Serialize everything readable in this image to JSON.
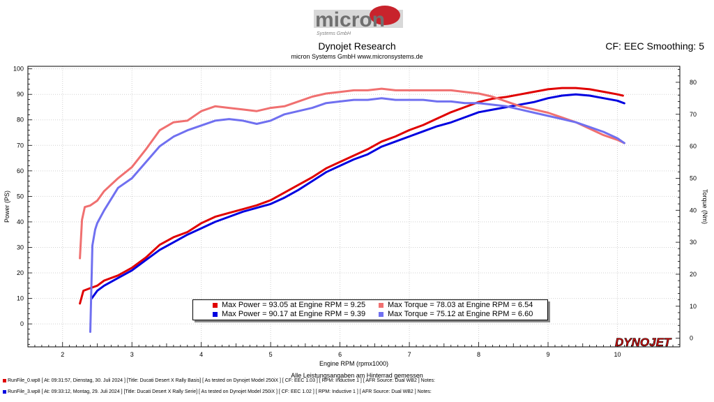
{
  "header": {
    "logo_text": "micron",
    "logo_sub": "Systems GmbH",
    "title": "Dynojet Research",
    "subtitle": "micron Systems GmbH  www.micronsystems.de",
    "right_label": "CF: EEC Smoothing: 5"
  },
  "footer": {
    "note": "Alle Leistungsangaben am Hinterrad gemessen",
    "runs": [
      {
        "text": "RunFile_0.wp8 [ At: 09:31:57, Dienstag, 30. Juli 2024 ] [Title: Ducati Desert X Rally Basis]  [ As tested on Dynojet Model 250iX ] [ CF: EEC 1.03 ] [ RPM: Inductive 1 ] [ AFR Source: Dual WB2 ] Notes:",
        "color": "#e00000"
      },
      {
        "text": "RunFile_3.wp8 [ At: 09:33:12, Montag, 29. Juli 2024 ] [Title: Ducati Desert X Rally Serie]  [ As tested on Dynojet Model 250iX ] [ CF: EEC 1.02 ] [ RPM: Inductive 1 ] [ AFR Source: Dual WB2 ] Notes:",
        "color": "#0000e0"
      }
    ],
    "brand": "DYNOJET"
  },
  "legend": [
    {
      "label": "Max Power = 93.05 at Engine RPM = 9.25",
      "color": "#e00000"
    },
    {
      "label": "Max Torque = 78.03 at Engine RPM = 6.54",
      "color": "#f07070"
    },
    {
      "label": "Max Power = 90.17 at Engine RPM = 9.39",
      "color": "#0000e0"
    },
    {
      "label": "Max Torque = 75.12 at Engine RPM = 6.60",
      "color": "#7070f0"
    }
  ],
  "chart_data": {
    "type": "line",
    "xlabel": "Engine RPM (rpmx1000)",
    "ylabel": "Power (PS)",
    "y2label": "Torque (Nm)",
    "xlim": [
      1.5,
      10.9
    ],
    "ylim": [
      -9,
      101
    ],
    "y2lim": [
      -2.7,
      85
    ],
    "x_ticks": [
      2,
      3,
      4,
      5,
      6,
      7,
      8,
      9,
      10
    ],
    "y_ticks": [
      0,
      10,
      20,
      30,
      40,
      50,
      60,
      70,
      80,
      90,
      100
    ],
    "y2_ticks": [
      0,
      10,
      20,
      30,
      40,
      50,
      60,
      70,
      80
    ],
    "grid": true,
    "series": [
      {
        "name": "Power 1",
        "axis": "left",
        "color": "#e00000",
        "x": [
          2.25,
          2.3,
          2.4,
          2.5,
          2.6,
          2.8,
          3.0,
          3.2,
          3.4,
          3.6,
          3.8,
          4.0,
          4.2,
          4.4,
          4.6,
          4.8,
          5.0,
          5.2,
          5.4,
          5.6,
          5.8,
          6.0,
          6.2,
          6.4,
          6.6,
          6.8,
          7.0,
          7.2,
          7.4,
          7.6,
          7.8,
          8.0,
          8.2,
          8.4,
          8.6,
          8.8,
          9.0,
          9.2,
          9.4,
          9.6,
          9.8,
          10.0,
          10.08
        ],
        "y": [
          8,
          13,
          14,
          15,
          17,
          19,
          22,
          26,
          31,
          34,
          36,
          39.5,
          42,
          43.5,
          45,
          46.5,
          48.5,
          51.5,
          54.5,
          57.5,
          61,
          63.5,
          66,
          68.5,
          71.5,
          73.5,
          76,
          78,
          80.5,
          83,
          85,
          87,
          88.3,
          89,
          90,
          91,
          92,
          92.5,
          92.5,
          92,
          91,
          90,
          89.5
        ]
      },
      {
        "name": "Power 2",
        "axis": "left",
        "color": "#0000e0",
        "x": [
          2.42,
          2.5,
          2.6,
          2.8,
          3.0,
          3.2,
          3.4,
          3.6,
          3.8,
          4.0,
          4.2,
          4.4,
          4.6,
          4.8,
          5.0,
          5.2,
          5.4,
          5.6,
          5.8,
          6.0,
          6.2,
          6.4,
          6.6,
          6.8,
          7.0,
          7.2,
          7.4,
          7.6,
          7.8,
          8.0,
          8.2,
          8.4,
          8.6,
          8.8,
          9.0,
          9.2,
          9.4,
          9.6,
          9.8,
          10.0,
          10.1
        ],
        "y": [
          10,
          13,
          15,
          18,
          21,
          25,
          29,
          32,
          35,
          37.5,
          40,
          42,
          44,
          45.5,
          47,
          49.5,
          52.5,
          56,
          59.5,
          62,
          64.5,
          66.5,
          69.5,
          71.5,
          73.5,
          75.5,
          77.5,
          79,
          81,
          83,
          84,
          85,
          86,
          87,
          88.5,
          89.5,
          90,
          89.5,
          88.5,
          87.5,
          86.5
        ]
      },
      {
        "name": "Torque 1",
        "axis": "right",
        "color": "#f07070",
        "x": [
          2.25,
          2.28,
          2.32,
          2.4,
          2.5,
          2.6,
          2.8,
          3.0,
          3.2,
          3.4,
          3.6,
          3.8,
          4.0,
          4.2,
          4.4,
          4.6,
          4.8,
          5.0,
          5.2,
          5.4,
          5.6,
          5.8,
          6.0,
          6.2,
          6.4,
          6.6,
          6.8,
          7.0,
          7.2,
          7.4,
          7.6,
          7.8,
          8.0,
          8.2,
          8.4,
          8.6,
          8.8,
          9.0,
          9.2,
          9.4,
          9.6,
          9.8,
          10.0,
          10.1
        ],
        "y": [
          25,
          37,
          41,
          41.5,
          43,
          46,
          50,
          53.5,
          59,
          65,
          67.5,
          68,
          71,
          72.5,
          72,
          71.5,
          71,
          72,
          72.5,
          74,
          75.5,
          76.5,
          77,
          77.5,
          77.5,
          78,
          77.5,
          77.5,
          77.5,
          77.5,
          77.5,
          77,
          76.5,
          75.5,
          74,
          72.5,
          71.5,
          70.5,
          69,
          67.5,
          65.5,
          63.5,
          62,
          61
        ]
      },
      {
        "name": "Torque 2",
        "axis": "right",
        "color": "#7070f0",
        "x": [
          2.4,
          2.43,
          2.47,
          2.5,
          2.6,
          2.8,
          3.0,
          3.2,
          3.4,
          3.6,
          3.8,
          4.0,
          4.2,
          4.4,
          4.6,
          4.8,
          5.0,
          5.2,
          5.4,
          5.6,
          5.8,
          6.0,
          6.2,
          6.4,
          6.6,
          6.8,
          7.0,
          7.2,
          7.4,
          7.6,
          7.8,
          8.0,
          8.2,
          8.4,
          8.6,
          8.8,
          9.0,
          9.2,
          9.4,
          9.6,
          9.8,
          10.0,
          10.1
        ],
        "y": [
          2,
          29,
          34,
          36,
          40,
          47,
          50,
          55,
          60,
          63,
          65,
          66.5,
          68,
          68.5,
          68,
          67,
          68,
          70,
          71,
          72,
          73.5,
          74,
          74.5,
          74.5,
          75,
          74.5,
          74.5,
          74.5,
          74,
          74,
          73.5,
          73.5,
          73,
          72.5,
          71.5,
          70.5,
          69.5,
          68.5,
          67.5,
          66,
          64.5,
          62.5,
          61
        ]
      }
    ]
  }
}
